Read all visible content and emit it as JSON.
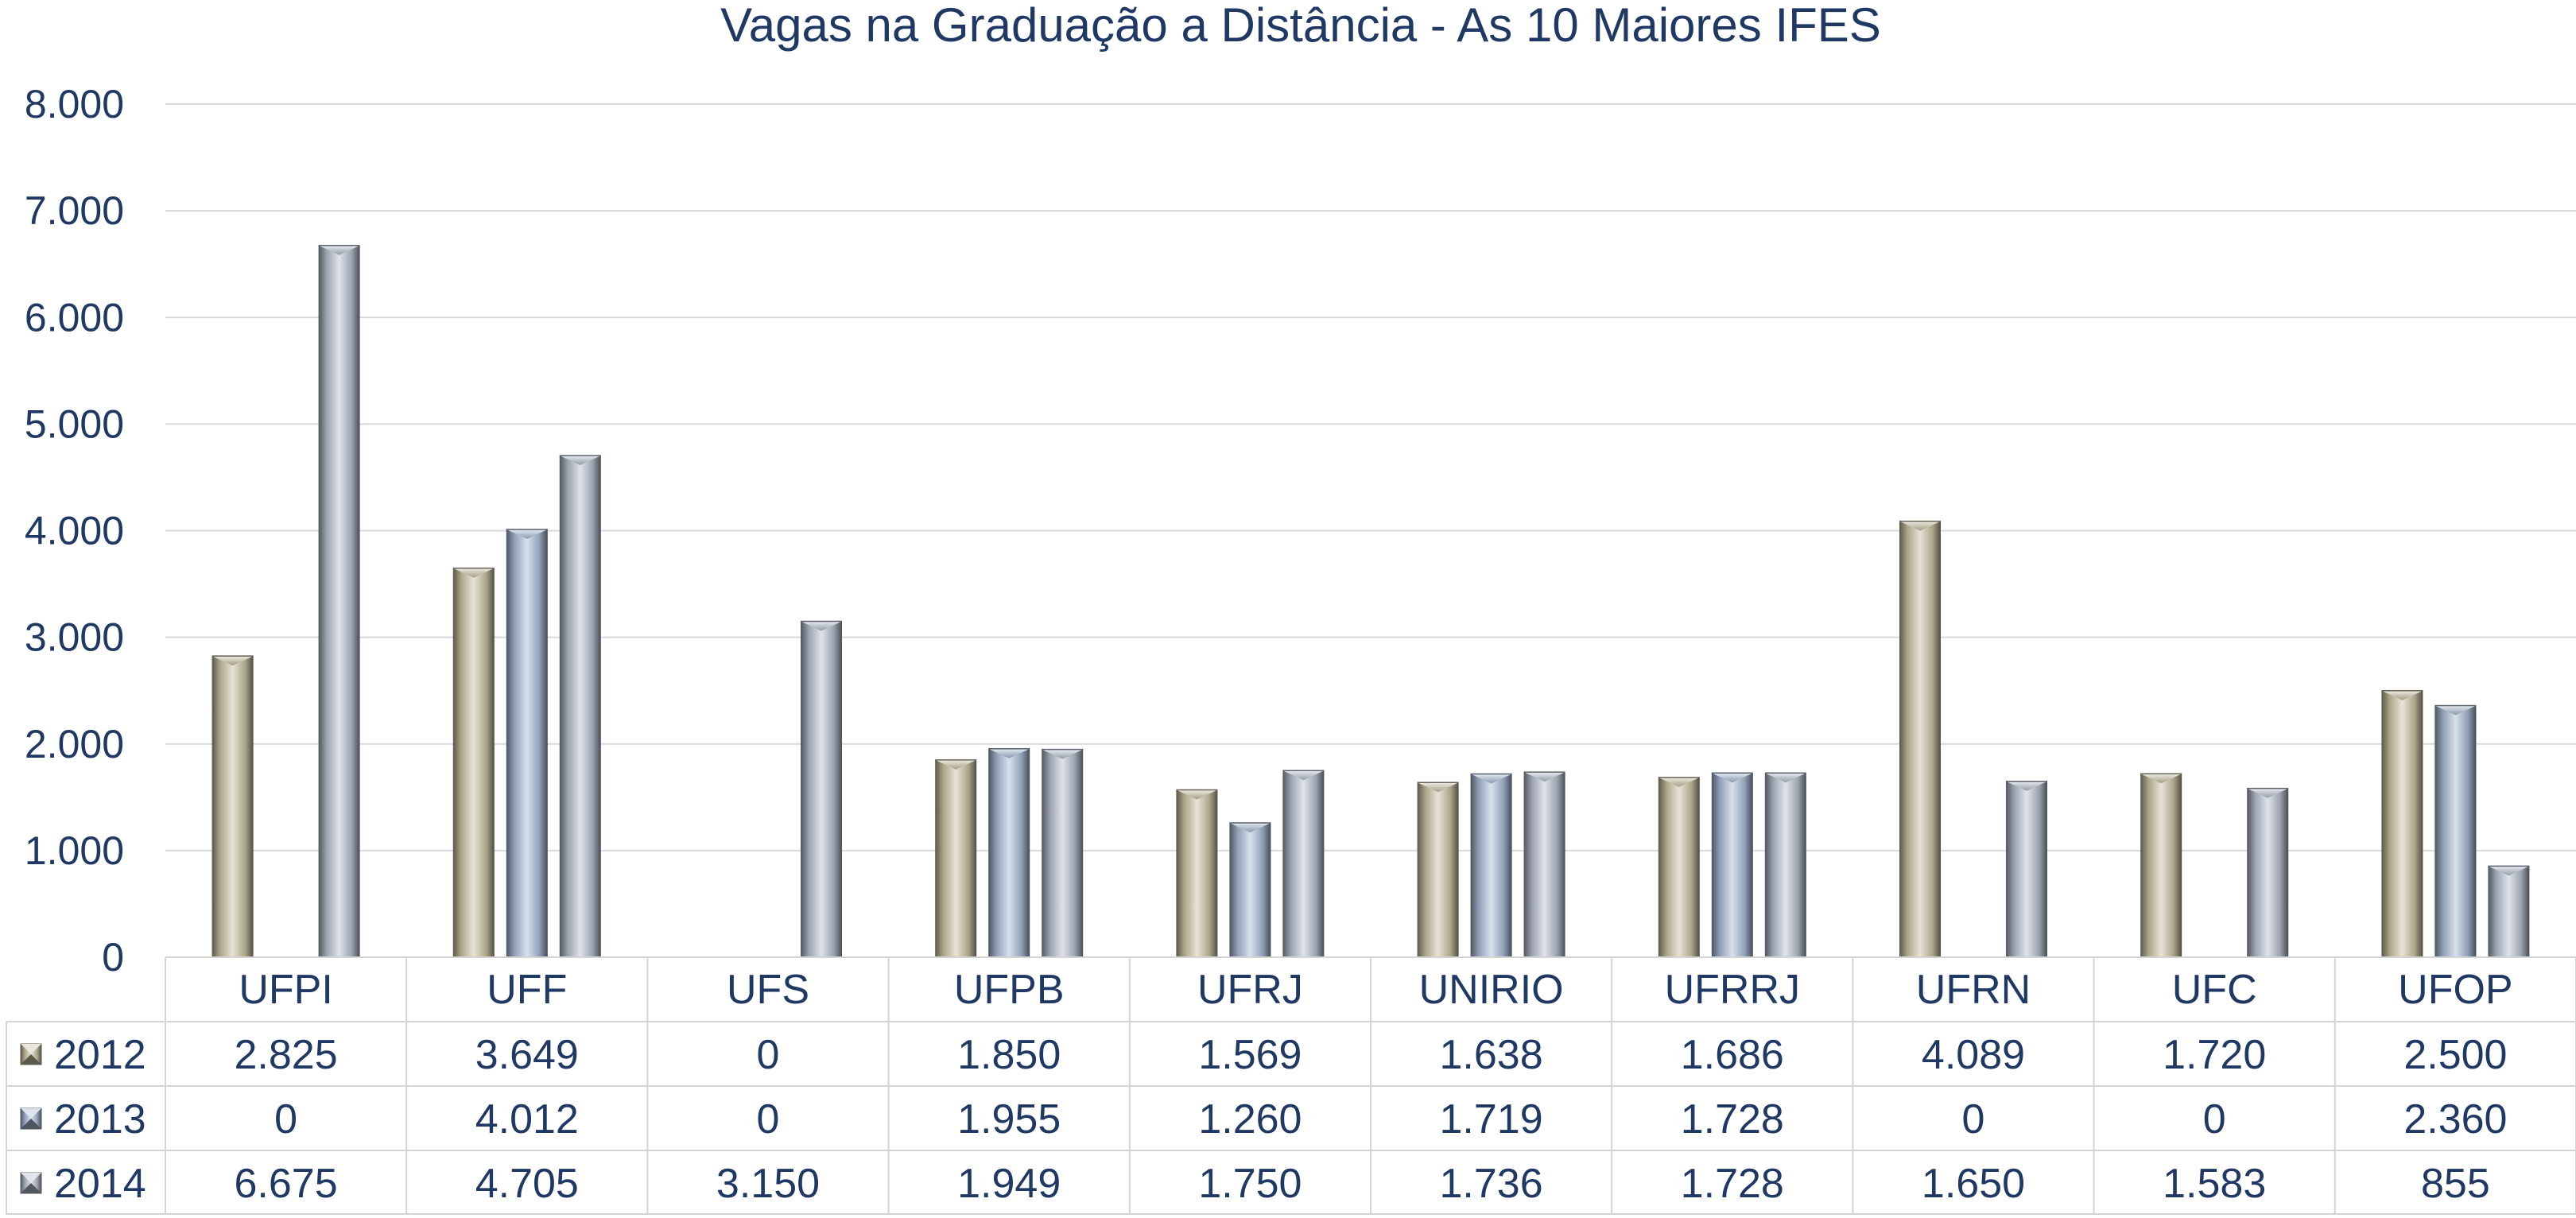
{
  "chart_data": {
    "type": "bar",
    "title": "Vagas na Graduação a Distância - As 10 Maiores IFES",
    "categories": [
      "UFPI",
      "UFF",
      "UFS",
      "UFPB",
      "UFRJ",
      "UNIRIO",
      "UFRRJ",
      "UFRN",
      "UFC",
      "UFOP"
    ],
    "series": [
      {
        "name": "2012",
        "values": [
          2825,
          3649,
          0,
          1850,
          1569,
          1638,
          1686,
          4089,
          1720,
          2500
        ],
        "labels": [
          "2.825",
          "3.649",
          "0",
          "1.850",
          "1.569",
          "1.638",
          "1.686",
          "4.089",
          "1.720",
          "2.500"
        ],
        "color": "#c9c3a4"
      },
      {
        "name": "2013",
        "values": [
          0,
          4012,
          0,
          1955,
          1260,
          1719,
          1728,
          0,
          0,
          2360
        ],
        "labels": [
          "0",
          "4.012",
          "0",
          "1.955",
          "1.260",
          "1.719",
          "1.728",
          "0",
          "0",
          "2.360"
        ],
        "color": "#a9bcd6"
      },
      {
        "name": "2014",
        "values": [
          6675,
          4705,
          3150,
          1949,
          1750,
          1736,
          1728,
          1650,
          1583,
          855
        ],
        "labels": [
          "6.675",
          "4.705",
          "3.150",
          "1.949",
          "1.750",
          "1.736",
          "1.728",
          "1.650",
          "1.583",
          "855"
        ],
        "color": "#b7c0cf"
      }
    ],
    "yticks": [
      "0",
      "1.000",
      "2.000",
      "3.000",
      "4.000",
      "5.000",
      "6.000",
      "7.000",
      "8.000"
    ],
    "ylim": [
      0,
      8000
    ],
    "grid": true,
    "legend": "data-table"
  }
}
